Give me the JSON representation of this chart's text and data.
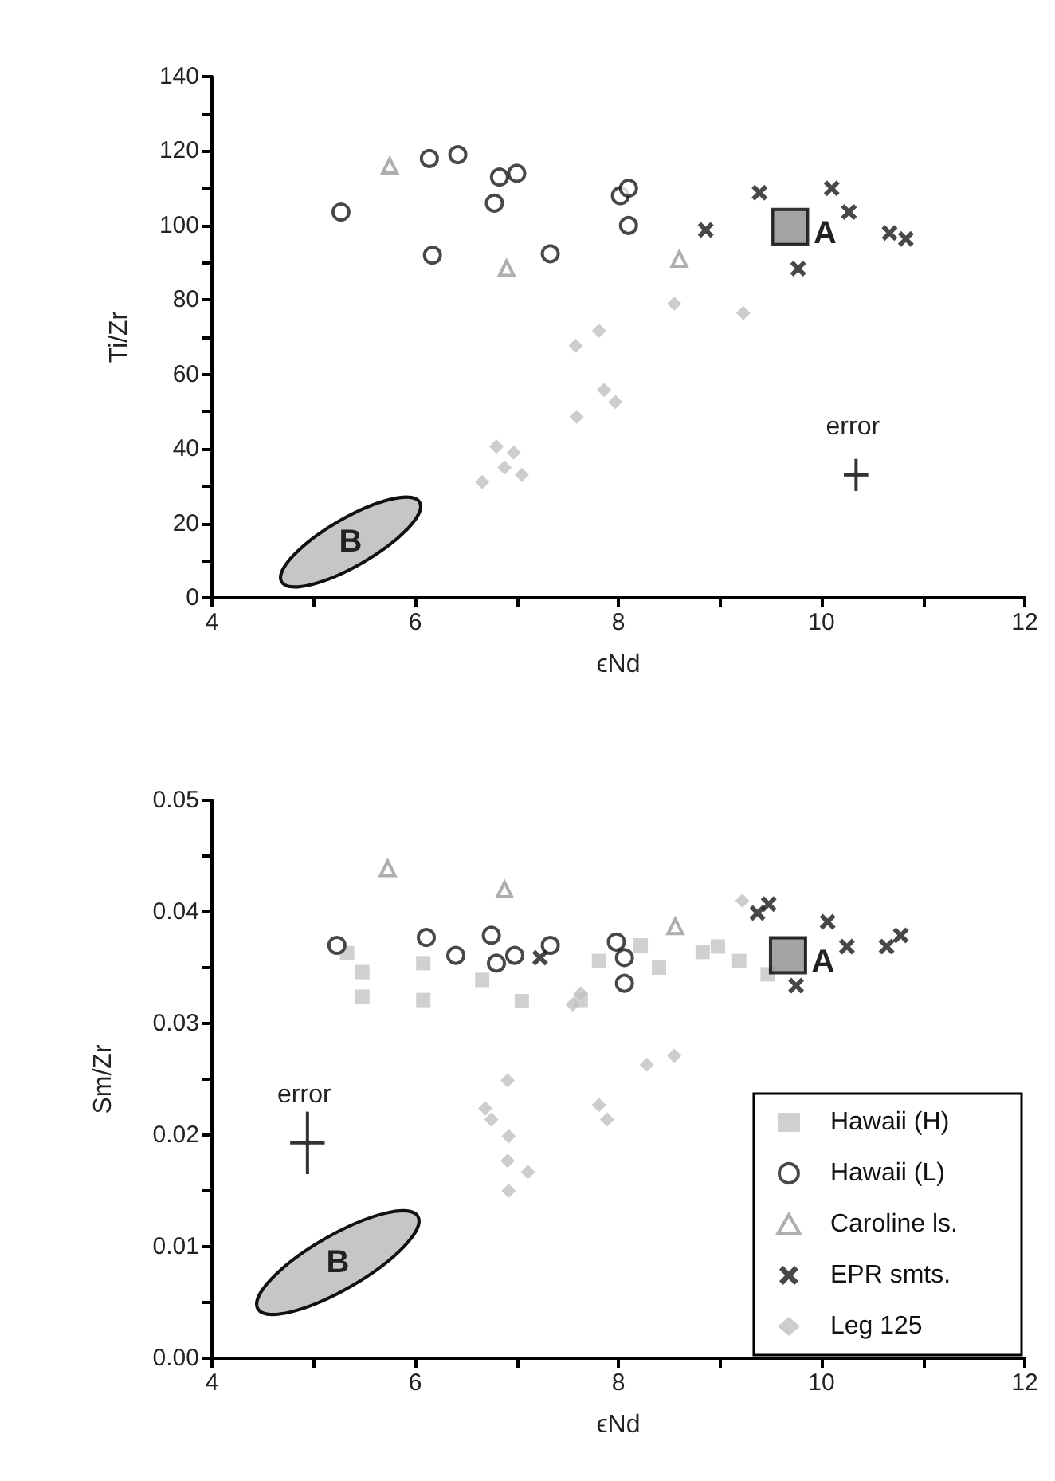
{
  "chart_data": [
    {
      "type": "scatter",
      "xlabel": "ϵNd",
      "ylabel": "Ti/Zr",
      "xlim": [
        4,
        12
      ],
      "ylim": [
        0,
        140
      ],
      "xticks": [
        4,
        {
          "value": 5,
          "label": null
        },
        6,
        {
          "value": 7,
          "label": null
        },
        8,
        {
          "value": 9,
          "label": null
        },
        10,
        {
          "value": 11,
          "label": null
        },
        12
      ],
      "yticks": [
        0,
        {
          "value": 10,
          "label": null
        },
        20,
        {
          "value": 30,
          "label": null
        },
        40,
        {
          "value": 50,
          "label": null
        },
        60,
        {
          "value": 70,
          "label": null
        },
        80,
        {
          "value": 90,
          "label": null
        },
        100,
        {
          "value": 110,
          "label": null
        },
        120,
        {
          "value": 130,
          "label": null
        },
        140
      ],
      "grid": false,
      "legend": false,
      "annotations": [
        {
          "text": "A",
          "x": 9.69,
          "y": 99.6
        },
        "B",
        {
          "text": "error",
          "x": 10.34,
          "y": 33
        }
      ],
      "series": [
        {
          "color": "#1a1a1a",
          "marker": "circle",
          "x": [
            5.27,
            6.14,
            6.42,
            6.83,
            7.0,
            6.78,
            6.17,
            7.33,
            8.02,
            8.1,
            8.1
          ],
          "values": [
            103.6,
            118,
            119,
            113,
            114,
            106,
            92,
            92.4,
            108,
            110,
            100
          ]
        },
        {
          "color": "#9a9a9a",
          "marker": "triangle",
          "x": [
            5.75,
            6.9,
            8.6
          ],
          "values": [
            116,
            88.5,
            91
          ]
        },
        {
          "color": "#1a1a1a",
          "marker": "cross",
          "x": [
            9.39,
            10.1,
            10.27,
            8.86,
            10.67,
            10.83,
            9.77
          ],
          "values": [
            108.8,
            110,
            103.6,
            98.8,
            98,
            96.4,
            88.4
          ]
        },
        {
          "color": "#c0c0c0",
          "marker": "diamond",
          "x": [
            7.81,
            7.58,
            7.86,
            7.97,
            7.59,
            6.8,
            6.97,
            6.88,
            7.05,
            6.66,
            8.55,
            9.23
          ],
          "values": [
            71.7,
            67.7,
            55.8,
            52.6,
            48.6,
            40.6,
            39,
            35,
            33,
            31.1,
            79,
            76.5
          ]
        },
        {
          "color": "#8c8c8c",
          "marker": "square",
          "x": [
            9.69
          ],
          "values": [
            99.6
          ]
        },
        {
          "color": "#333333",
          "marker": "square",
          "x": [
            10.34
          ],
          "values": [
            33
          ],
          "errors": [
            4.3
          ],
          "xerrors": [
            0.12
          ]
        }
      ]
    },
    {
      "type": "scatter",
      "xlabel": "ϵNd",
      "ylabel": "Sm/Zr",
      "xlim": [
        4,
        12
      ],
      "ylim": [
        0,
        0.05
      ],
      "xticks": [
        4,
        {
          "value": 5,
          "label": null
        },
        6,
        {
          "value": 7,
          "label": null
        },
        8,
        {
          "value": 9,
          "label": null
        },
        10,
        {
          "value": 11,
          "label": null
        },
        12
      ],
      "yticks": [
        {
          "value": 0,
          "label": "0.00"
        },
        {
          "value": 0.005,
          "label": null
        },
        {
          "value": 0.01,
          "label": "0.01"
        },
        {
          "value": 0.015,
          "label": null
        },
        {
          "value": 0.02,
          "label": "0.02"
        },
        {
          "value": 0.025,
          "label": null
        },
        {
          "value": 0.03,
          "label": "0.03"
        },
        {
          "value": 0.035,
          "label": null
        },
        {
          "value": 0.04,
          "label": "0.04"
        },
        {
          "value": 0.045,
          "label": null
        },
        {
          "value": 0.05,
          "label": "0.05"
        }
      ],
      "grid": false,
      "legend": "bottom right",
      "annotations": [
        {
          "text": "A",
          "x": 9.67,
          "y": 0.0361
        },
        "B",
        {
          "text": "error",
          "x": 4.94,
          "y": 0.0193
        }
      ],
      "series": [
        {
          "name": "Hawaii (H)",
          "color": "#c4c4c4",
          "marker": "square",
          "x": [
            5.33,
            5.48,
            5.48,
            6.08,
            6.08,
            6.66,
            7.05,
            7.63,
            7.81,
            8.22,
            8.4,
            8.83,
            8.98,
            9.19,
            9.47
          ],
          "values": [
            0.0363,
            0.0346,
            0.0324,
            0.0354,
            0.0321,
            0.0339,
            0.032,
            0.0321,
            0.0356,
            0.037,
            0.035,
            0.0364,
            0.0369,
            0.0356,
            0.0344
          ]
        },
        {
          "name": "Hawaii (L)",
          "color": "#1a1a1a",
          "marker": "circle",
          "x": [
            5.23,
            6.11,
            6.4,
            6.75,
            6.8,
            6.98,
            7.33,
            7.98,
            8.06,
            8.06
          ],
          "values": [
            0.037,
            0.0377,
            0.0361,
            0.0379,
            0.0354,
            0.0361,
            0.037,
            0.0373,
            0.0359,
            0.0336
          ]
        },
        {
          "name": "Caroline ls.",
          "color": "#9a9a9a",
          "marker": "triangle",
          "x": [
            5.73,
            6.88,
            8.56
          ],
          "values": [
            0.0439,
            0.042,
            0.0387
          ]
        },
        {
          "name": "EPR smts.",
          "color": "#1a1a1a",
          "marker": "cross",
          "x": [
            7.23,
            9.37,
            9.48,
            10.06,
            10.25,
            10.64,
            10.78,
            9.75
          ],
          "values": [
            0.0359,
            0.0399,
            0.0407,
            0.0391,
            0.0369,
            0.0369,
            0.0379,
            0.0334
          ]
        },
        {
          "name": "Leg 125",
          "color": "#c0c0c0",
          "marker": "diamond",
          "x": [
            6.91,
            6.69,
            6.75,
            6.92,
            6.91,
            7.11,
            6.92,
            7.81,
            7.89,
            7.55,
            7.63,
            9.22,
            8.28,
            8.55
          ],
          "values": [
            0.0249,
            0.0224,
            0.0214,
            0.0199,
            0.0177,
            0.0167,
            0.015,
            0.0227,
            0.0214,
            0.0317,
            0.0327,
            0.041,
            0.0263,
            0.0271
          ]
        },
        {
          "color": "#8c8c8c",
          "marker": "square",
          "x": [
            9.67
          ],
          "values": [
            0.0361
          ]
        },
        {
          "color": "#333333",
          "marker": "square",
          "x": [
            4.94
          ],
          "values": [
            0.0193
          ],
          "errors": [
            0.0028
          ],
          "xerrors": [
            0.17
          ]
        }
      ]
    }
  ]
}
